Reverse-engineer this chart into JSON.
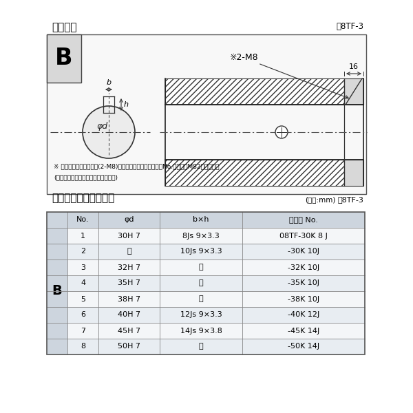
{
  "title_diagram": "軸穴形状",
  "fig_label": "囸8TF-3",
  "table_title": "軸穴形状コード一覧表",
  "table_unit": "(単位:mm)",
  "table_label": "袆8TF-3",
  "note1": "※ セットボルト用タップ(2-M8)が必要な場合は右記コードNo.の末尾にM82を付ける。",
  "note2": "(セットボルトは付属されています。)",
  "col_headers": [
    "No.",
    "φd",
    "b×h",
    "コード No."
  ],
  "rows": [
    [
      "1",
      "30H 7",
      "8Js 9×3.3",
      "08TF-30K 8 J"
    ],
    [
      "2",
      "〝",
      "10Js 9×3.3",
      "-30K 10J"
    ],
    [
      "3",
      "32H 7",
      "〝",
      "-32K 10J"
    ],
    [
      "4",
      "35H 7",
      "〝",
      "-35K 10J"
    ],
    [
      "5",
      "38H 7",
      "〝",
      "-38K 10J"
    ],
    [
      "6",
      "40H 7",
      "12Js 9×3.3",
      "-40K 12J"
    ],
    [
      "7",
      "45H 7",
      "14Js 9×3.8",
      "-45K 14J"
    ],
    [
      "8",
      "50H 7",
      "〝",
      "-50K 14J"
    ]
  ],
  "row_B_label": "B",
  "bg_color": "#ffffff",
  "table_header_bg": "#cdd5de",
  "table_row_odd": "#e8edf2",
  "table_row_even": "#f4f6f8",
  "table_border": "#888888",
  "diagram_bg": "#f8f8f8"
}
